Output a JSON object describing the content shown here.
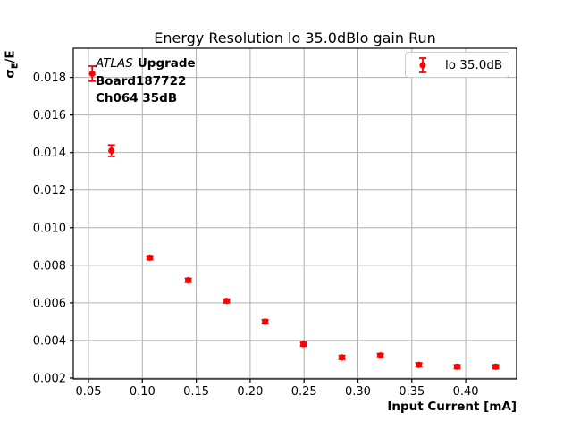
{
  "chart_data": {
    "type": "scatter",
    "title": "Energy Resolution lo 35.0dBlo gain Run",
    "xlabel": "Input Current [mA]",
    "ylabel": "σE/E",
    "ylabel_parts": {
      "sigma": "σ",
      "subscript": "E",
      "rest": "/E"
    },
    "xlim": [
      0.0359,
      0.4472
    ],
    "ylim": [
      0.00195,
      0.01955
    ],
    "xticks": [
      0.05,
      0.1,
      0.15,
      0.2,
      0.25,
      0.3,
      0.35,
      0.4
    ],
    "xtick_labels": [
      "0.05",
      "0.10",
      "0.15",
      "0.20",
      "0.25",
      "0.30",
      "0.35",
      "0.40"
    ],
    "yticks": [
      0.002,
      0.004,
      0.006,
      0.008,
      0.01,
      0.012,
      0.014,
      0.016,
      0.018
    ],
    "ytick_labels": [
      "0.002",
      "0.004",
      "0.006",
      "0.008",
      "0.010",
      "0.012",
      "0.014",
      "0.016",
      "0.018"
    ],
    "grid": true,
    "legend_position": "upper right",
    "series": [
      {
        "name": "lo 35.0dB",
        "color": "#ff0000",
        "marker": "circle",
        "x": [
          0.0535,
          0.0713,
          0.1069,
          0.1426,
          0.1782,
          0.2139,
          0.2495,
          0.2852,
          0.3208,
          0.3565,
          0.3921,
          0.4278
        ],
        "y": [
          0.0182,
          0.0141,
          0.0084,
          0.0072,
          0.0061,
          0.005,
          0.0038,
          0.0031,
          0.0032,
          0.0027,
          0.0026,
          0.0026
        ],
        "yerr": [
          0.0004,
          0.0003,
          0.0001,
          0.0001,
          0.0001,
          0.0001,
          0.0001,
          0.0001,
          0.0001,
          0.0001,
          0.0001,
          0.0001
        ]
      }
    ]
  },
  "legend": {
    "label": "lo 35.0dB"
  },
  "annotation": {
    "line1_italic": "ATLAS",
    "line1_bold": "Upgrade",
    "line2": "Board187722",
    "line3": "Ch064 35dB"
  },
  "colors": {
    "marker": "#ff0000",
    "grid": "#b0b0b0",
    "axis": "#000000",
    "legend_border": "#cccccc"
  }
}
